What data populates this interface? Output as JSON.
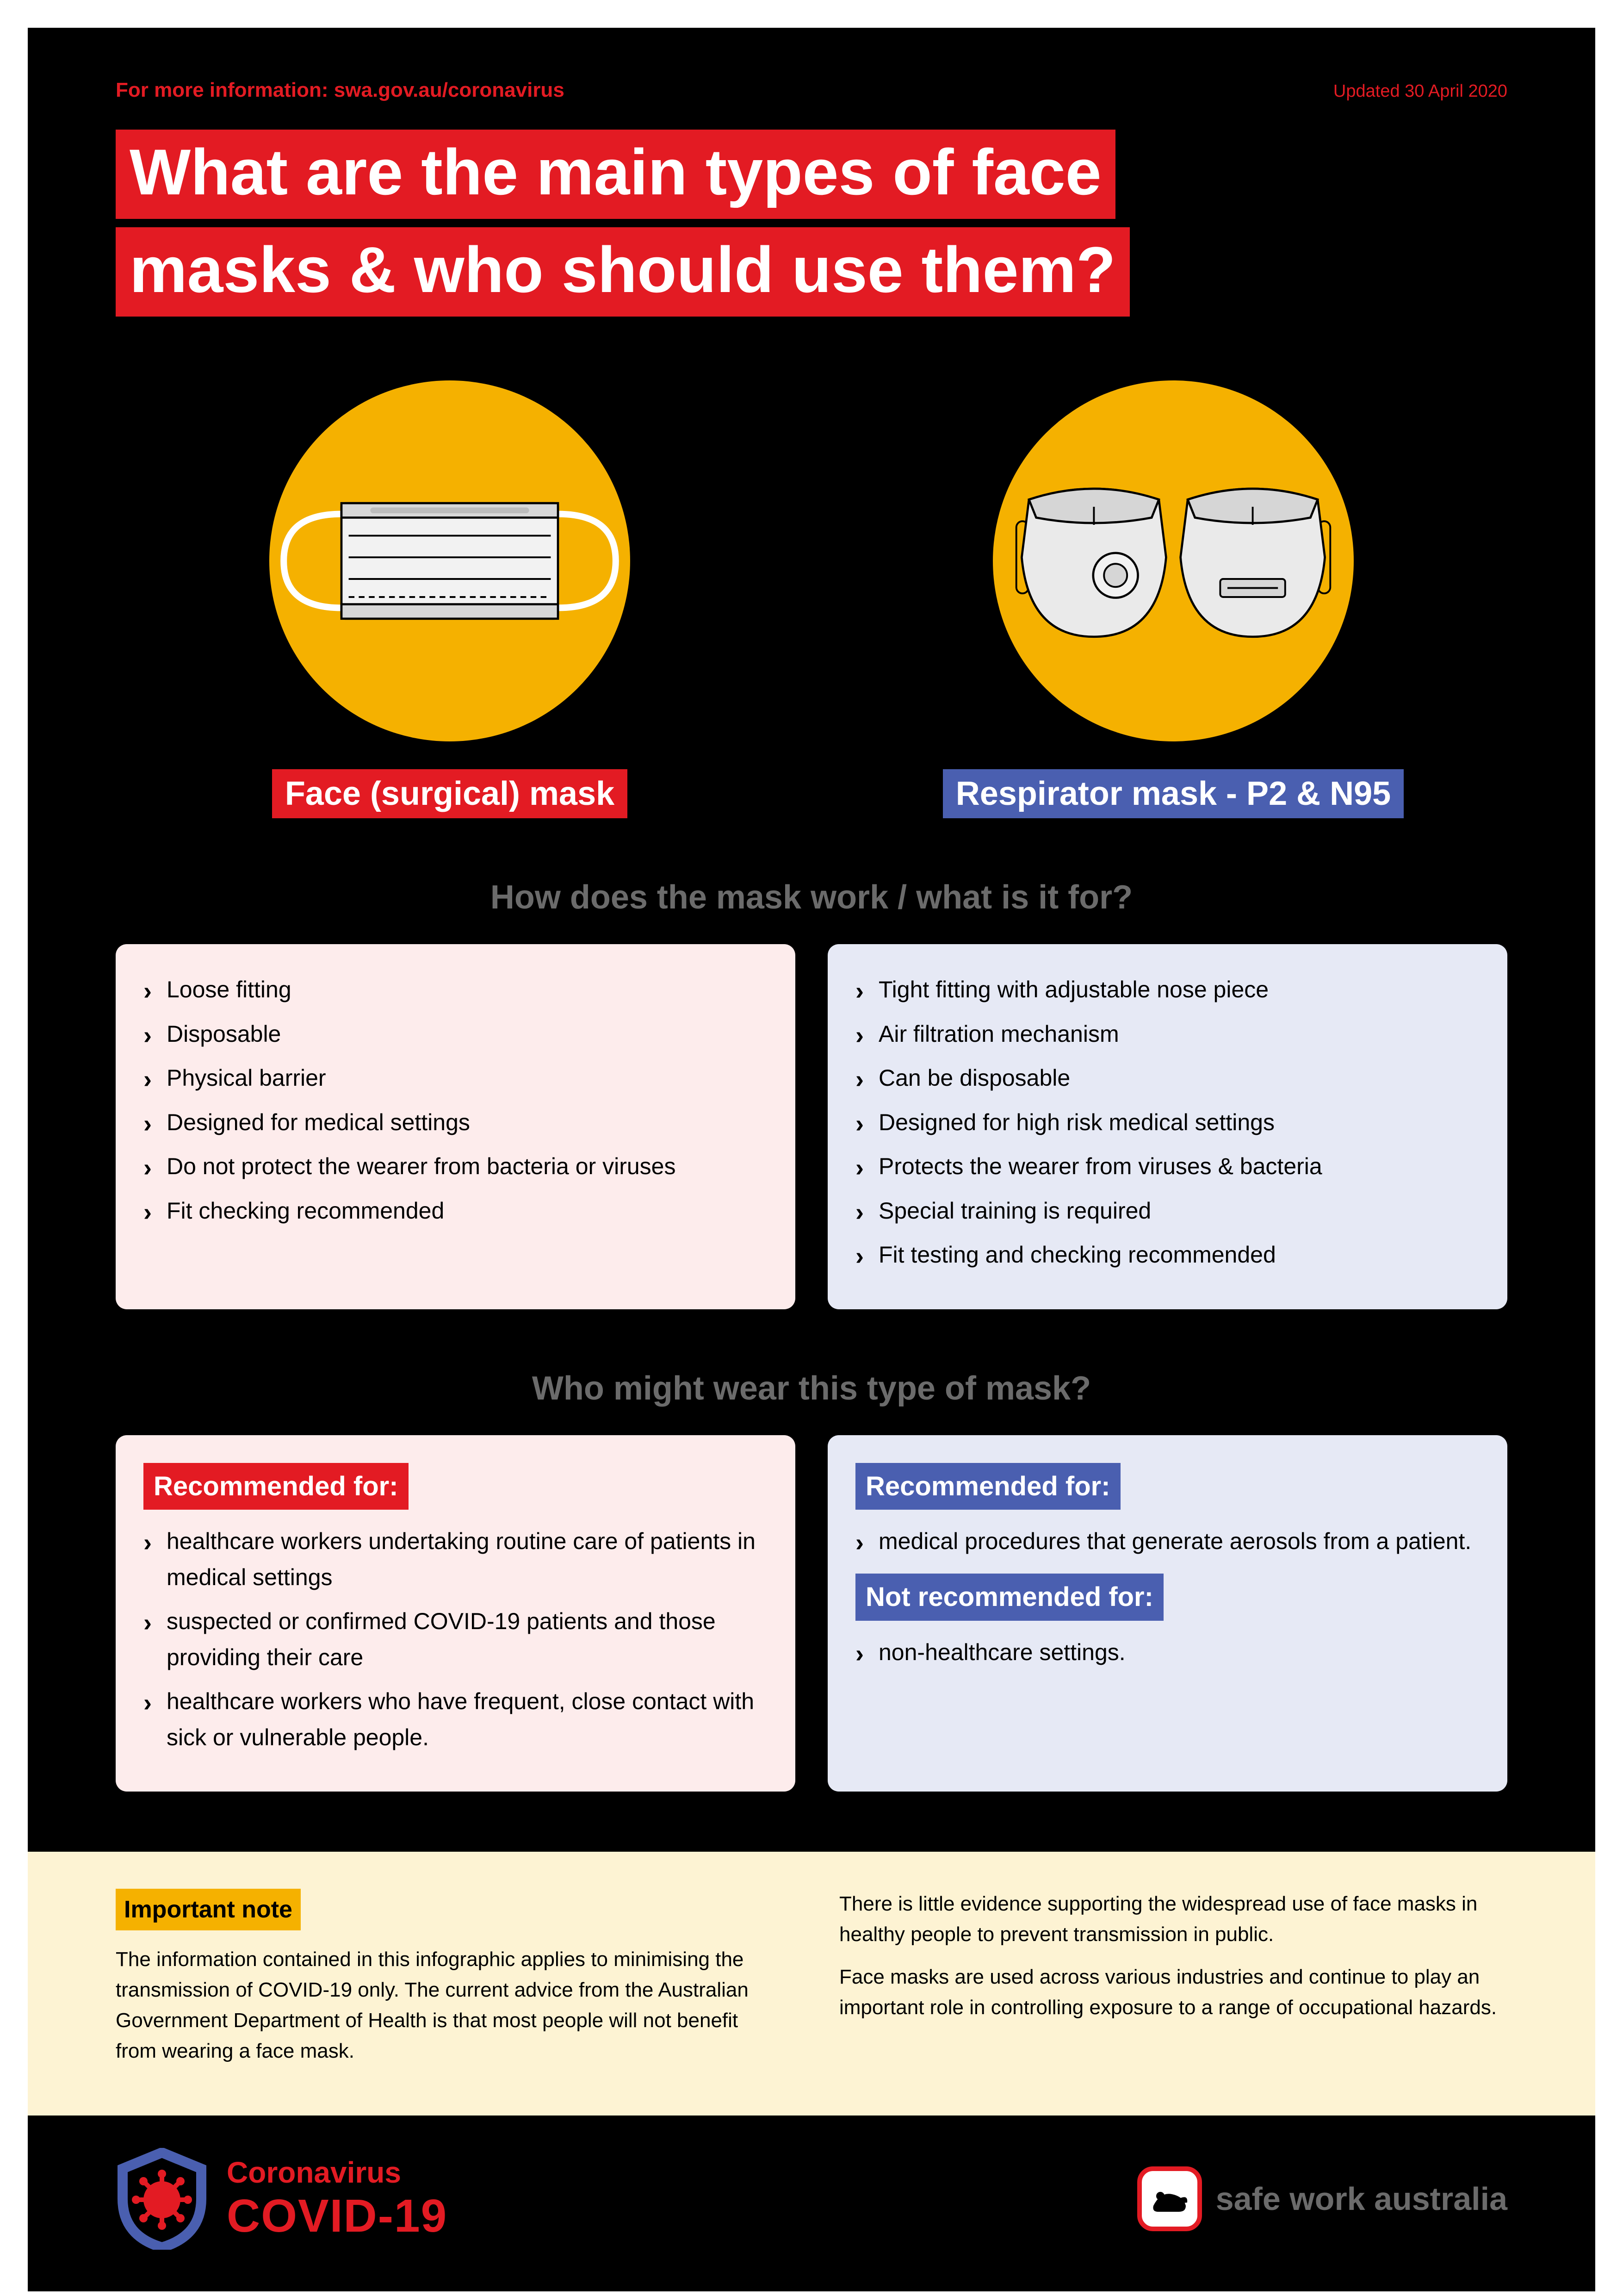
{
  "colors": {
    "red": "#e31b23",
    "blue": "#4a5fb0",
    "yellow": "#f5b100",
    "black": "#000000",
    "cream": "#fdf3d3",
    "pink_card": "#fdecec",
    "blue_card": "#e6e9f5",
    "grey_text": "#6b6b6b"
  },
  "header": {
    "info": "For more information: swa.gov.au/coronavirus",
    "updated": "Updated 30 April 2020"
  },
  "title": {
    "line1": "What are the main types of face",
    "line2": "masks & who should use them?"
  },
  "masks": {
    "surgical": {
      "label": "Face (surgical) mask"
    },
    "respirator": {
      "label": "Respirator mask - P2 & N95"
    }
  },
  "section1": {
    "heading": "How does the mask work / what is it for?",
    "surgical": [
      "Loose fitting",
      "Disposable",
      "Physical barrier",
      "Designed for medical settings",
      "Do not protect the wearer from bacteria or viruses",
      "Fit checking recommended"
    ],
    "respirator": [
      "Tight fitting with adjustable nose piece",
      "Air filtration mechanism",
      "Can be disposable",
      "Designed for high risk medical settings",
      "Protects the wearer from viruses & bacteria",
      "Special training is required",
      "Fit testing and checking recommended"
    ]
  },
  "section2": {
    "heading": "Who might wear this type of mask?",
    "recommended_label": "Recommended for:",
    "not_recommended_label": "Not recommended for:",
    "surgical_recommended": [
      "healthcare workers undertaking routine care of patients in medical settings",
      "suspected or confirmed COVID-19 patients and those providing their care",
      "healthcare workers who have frequent, close contact with sick or vulnerable people."
    ],
    "respirator_recommended": [
      "medical procedures that generate aerosols from a patient."
    ],
    "respirator_not_recommended": [
      "non-healthcare settings."
    ]
  },
  "note": {
    "label": "Important note",
    "left": "The information contained in this infographic applies to minimising the transmission of COVID-19 only. The current advice from the Australian Government Department of Health is that most people will not benefit from wearing a face mask.",
    "right1": "There is little evidence supporting the widespread use of face masks in healthy people to prevent transmission in public.",
    "right2": "Face masks are used across various industries and continue to play an important role in controlling exposure to a range of occupational hazards."
  },
  "footer": {
    "brand_line1": "Coronavirus",
    "brand_line2": "COVID-19",
    "swa": "safe work australia"
  }
}
